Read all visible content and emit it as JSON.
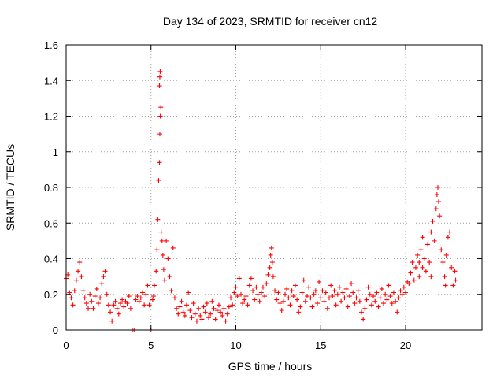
{
  "chart_data": {
    "type": "scatter",
    "title": "Day 134 of 2023, SRMTID for receiver cn12",
    "xlabel": "GPS time / hours",
    "ylabel": "SRMTID / TECUs",
    "xlim": [
      0,
      24.5
    ],
    "ylim": [
      0,
      1.6
    ],
    "xticks": [
      0,
      5,
      10,
      15,
      20
    ],
    "xtick_labels": [
      "0",
      "5",
      "10",
      "15",
      "20"
    ],
    "yticks": [
      0,
      0.2,
      0.4,
      0.6,
      0.8,
      1,
      1.2,
      1.4,
      1.6
    ],
    "ytick_labels": [
      "0",
      "0.2",
      "0.4",
      "0.6",
      "0.8",
      "1",
      "1.2",
      "1.4",
      "1.6"
    ],
    "grid": true,
    "marker": "plus",
    "series": [
      {
        "name": "SRMTID",
        "color": "#ff0000",
        "points": [
          [
            0.0,
            0.29
          ],
          [
            0.1,
            0.31
          ],
          [
            0.2,
            0.21
          ],
          [
            0.3,
            0.18
          ],
          [
            0.4,
            0.14
          ],
          [
            0.5,
            0.22
          ],
          [
            0.6,
            0.28
          ],
          [
            0.7,
            0.33
          ],
          [
            0.8,
            0.38
          ],
          [
            0.9,
            0.3
          ],
          [
            1.0,
            0.22
          ],
          [
            1.1,
            0.18
          ],
          [
            1.2,
            0.15
          ],
          [
            1.3,
            0.12
          ],
          [
            1.4,
            0.2
          ],
          [
            1.5,
            0.16
          ],
          [
            1.6,
            0.12
          ],
          [
            1.7,
            0.19
          ],
          [
            1.8,
            0.23
          ],
          [
            1.9,
            0.15
          ],
          [
            2.0,
            0.18
          ],
          [
            2.1,
            0.26
          ],
          [
            2.2,
            0.3
          ],
          [
            2.3,
            0.33
          ],
          [
            2.4,
            0.2
          ],
          [
            2.5,
            0.14
          ],
          [
            2.6,
            0.1
          ],
          [
            2.7,
            0.05
          ],
          [
            2.8,
            0.14
          ],
          [
            2.9,
            0.16
          ],
          [
            3.0,
            0.12
          ],
          [
            3.1,
            0.09
          ],
          [
            3.2,
            0.15
          ],
          [
            3.3,
            0.17
          ],
          [
            3.4,
            0.13
          ],
          [
            3.5,
            0.16
          ],
          [
            3.6,
            0.15
          ],
          [
            3.7,
            0.19
          ],
          [
            3.8,
            0.12
          ],
          [
            3.9,
            0.0
          ],
          [
            4.0,
            0.0
          ],
          [
            4.1,
            0.17
          ],
          [
            4.2,
            0.19
          ],
          [
            4.3,
            0.16
          ],
          [
            4.4,
            0.18
          ],
          [
            4.5,
            0.21
          ],
          [
            4.6,
            0.14
          ],
          [
            4.7,
            0.2
          ],
          [
            4.8,
            0.25
          ],
          [
            4.9,
            0.14
          ],
          [
            5.0,
            0.0
          ],
          [
            5.1,
            0.17
          ],
          [
            5.15,
            0.19
          ],
          [
            5.2,
            0.25
          ],
          [
            5.3,
            0.33
          ],
          [
            5.35,
            0.45
          ],
          [
            5.4,
            0.62
          ],
          [
            5.45,
            0.84
          ],
          [
            5.5,
            0.94
          ],
          [
            5.52,
            1.1
          ],
          [
            5.55,
            1.2
          ],
          [
            5.58,
            1.25
          ],
          [
            5.5,
            1.37
          ],
          [
            5.52,
            1.42
          ],
          [
            5.54,
            1.45
          ],
          [
            5.6,
            0.55
          ],
          [
            5.65,
            0.5
          ],
          [
            5.7,
            0.42
          ],
          [
            5.75,
            0.34
          ],
          [
            5.8,
            0.28
          ],
          [
            5.9,
            0.5
          ],
          [
            6.0,
            0.4
          ],
          [
            6.1,
            0.3
          ],
          [
            6.2,
            0.22
          ],
          [
            6.3,
            0.46
          ],
          [
            6.4,
            0.18
          ],
          [
            6.5,
            0.12
          ],
          [
            6.6,
            0.09
          ],
          [
            6.7,
            0.13
          ],
          [
            6.8,
            0.16
          ],
          [
            6.9,
            0.1
          ],
          [
            7.0,
            0.08
          ],
          [
            7.1,
            0.14
          ],
          [
            7.2,
            0.21
          ],
          [
            7.3,
            0.11
          ],
          [
            7.4,
            0.07
          ],
          [
            7.5,
            0.15
          ],
          [
            7.6,
            0.09
          ],
          [
            7.7,
            0.05
          ],
          [
            7.8,
            0.12
          ],
          [
            7.9,
            0.08
          ],
          [
            8.0,
            0.06
          ],
          [
            8.1,
            0.13
          ],
          [
            8.2,
            0.1
          ],
          [
            8.3,
            0.15
          ],
          [
            8.4,
            0.07
          ],
          [
            8.5,
            0.09
          ],
          [
            8.6,
            0.16
          ],
          [
            8.7,
            0.12
          ],
          [
            8.8,
            0.06
          ],
          [
            8.9,
            0.11
          ],
          [
            9.0,
            0.14
          ],
          [
            9.1,
            0.1
          ],
          [
            9.2,
            0.08
          ],
          [
            9.3,
            0.12
          ],
          [
            9.4,
            0.05
          ],
          [
            9.5,
            0.09
          ],
          [
            9.6,
            0.13
          ],
          [
            9.7,
            0.18
          ],
          [
            9.8,
            0.14
          ],
          [
            9.9,
            0.21
          ],
          [
            10.0,
            0.24
          ],
          [
            10.1,
            0.19
          ],
          [
            10.2,
            0.29
          ],
          [
            10.3,
            0.2
          ],
          [
            10.4,
            0.15
          ],
          [
            10.5,
            0.17
          ],
          [
            10.6,
            0.19
          ],
          [
            10.7,
            0.14
          ],
          [
            10.8,
            0.25
          ],
          [
            10.9,
            0.29
          ],
          [
            11.0,
            0.22
          ],
          [
            11.1,
            0.17
          ],
          [
            11.2,
            0.24
          ],
          [
            11.3,
            0.2
          ],
          [
            11.4,
            0.16
          ],
          [
            11.5,
            0.21
          ],
          [
            11.6,
            0.24
          ],
          [
            11.7,
            0.19
          ],
          [
            11.8,
            0.26
          ],
          [
            11.9,
            0.31
          ],
          [
            12.0,
            0.35
          ],
          [
            12.05,
            0.42
          ],
          [
            12.1,
            0.46
          ],
          [
            12.15,
            0.38
          ],
          [
            12.2,
            0.3
          ],
          [
            12.3,
            0.22
          ],
          [
            12.4,
            0.17
          ],
          [
            12.5,
            0.21
          ],
          [
            12.6,
            0.15
          ],
          [
            12.7,
            0.11
          ],
          [
            12.8,
            0.16
          ],
          [
            12.9,
            0.2
          ],
          [
            13.0,
            0.23
          ],
          [
            13.1,
            0.18
          ],
          [
            13.2,
            0.14
          ],
          [
            13.3,
            0.22
          ],
          [
            13.4,
            0.19
          ],
          [
            13.5,
            0.25
          ],
          [
            13.6,
            0.17
          ],
          [
            13.7,
            0.1
          ],
          [
            13.8,
            0.13
          ],
          [
            13.9,
            0.21
          ],
          [
            14.0,
            0.28
          ],
          [
            14.1,
            0.16
          ],
          [
            14.2,
            0.19
          ],
          [
            14.3,
            0.24
          ],
          [
            14.4,
            0.18
          ],
          [
            14.5,
            0.13
          ],
          [
            14.6,
            0.2
          ],
          [
            14.7,
            0.22
          ],
          [
            14.8,
            0.15
          ],
          [
            14.9,
            0.27
          ],
          [
            15.0,
            0.18
          ],
          [
            15.1,
            0.22
          ],
          [
            15.2,
            0.16
          ],
          [
            15.3,
            0.21
          ],
          [
            15.4,
            0.12
          ],
          [
            15.5,
            0.18
          ],
          [
            15.6,
            0.25
          ],
          [
            15.7,
            0.19
          ],
          [
            15.8,
            0.22
          ],
          [
            15.9,
            0.14
          ],
          [
            16.0,
            0.2
          ],
          [
            16.1,
            0.24
          ],
          [
            16.2,
            0.16
          ],
          [
            16.3,
            0.21
          ],
          [
            16.4,
            0.18
          ],
          [
            16.5,
            0.23
          ],
          [
            16.6,
            0.13
          ],
          [
            16.7,
            0.19
          ],
          [
            16.8,
            0.26
          ],
          [
            16.9,
            0.21
          ],
          [
            17.0,
            0.15
          ],
          [
            17.1,
            0.18
          ],
          [
            17.2,
            0.22
          ],
          [
            17.3,
            0.16
          ],
          [
            17.4,
            0.1
          ],
          [
            17.5,
            0.06
          ],
          [
            17.6,
            0.12
          ],
          [
            17.7,
            0.17
          ],
          [
            17.8,
            0.24
          ],
          [
            17.9,
            0.2
          ],
          [
            18.0,
            0.14
          ],
          [
            18.1,
            0.19
          ],
          [
            18.2,
            0.16
          ],
          [
            18.3,
            0.21
          ],
          [
            18.4,
            0.13
          ],
          [
            18.5,
            0.18
          ],
          [
            18.6,
            0.23
          ],
          [
            18.7,
            0.15
          ],
          [
            18.8,
            0.2
          ],
          [
            18.9,
            0.17
          ],
          [
            19.0,
            0.25
          ],
          [
            19.1,
            0.19
          ],
          [
            19.2,
            0.15
          ],
          [
            19.3,
            0.21
          ],
          [
            19.4,
            0.16
          ],
          [
            19.5,
            0.1
          ],
          [
            19.6,
            0.18
          ],
          [
            19.7,
            0.22
          ],
          [
            19.8,
            0.2
          ],
          [
            19.9,
            0.24
          ],
          [
            20.0,
            0.21
          ],
          [
            20.1,
            0.27
          ],
          [
            20.2,
            0.26
          ],
          [
            20.3,
            0.32
          ],
          [
            20.4,
            0.38
          ],
          [
            20.5,
            0.28
          ],
          [
            20.6,
            0.35
          ],
          [
            20.7,
            0.42
          ],
          [
            20.8,
            0.3
          ],
          [
            20.9,
            0.45
          ],
          [
            21.0,
            0.52
          ],
          [
            21.1,
            0.4
          ],
          [
            21.2,
            0.33
          ],
          [
            21.3,
            0.48
          ],
          [
            21.4,
            0.38
          ],
          [
            21.5,
            0.55
          ],
          [
            21.6,
            0.61
          ],
          [
            21.7,
            0.5
          ],
          [
            21.8,
            0.68
          ],
          [
            21.85,
            0.76
          ],
          [
            21.9,
            0.8
          ],
          [
            21.95,
            0.72
          ],
          [
            22.0,
            0.64
          ],
          [
            22.1,
            0.45
          ],
          [
            22.2,
            0.38
          ],
          [
            22.3,
            0.3
          ],
          [
            22.4,
            0.42
          ],
          [
            22.5,
            0.52
          ],
          [
            22.6,
            0.55
          ],
          [
            22.7,
            0.35
          ],
          [
            22.8,
            0.25
          ],
          [
            22.9,
            0.33
          ],
          [
            22.95,
            0.28
          ],
          [
            22.35,
            0.25
          ],
          [
            21.5,
            0.3
          ],
          [
            21.0,
            0.35
          ],
          [
            20.8,
            0.38
          ]
        ]
      }
    ]
  }
}
